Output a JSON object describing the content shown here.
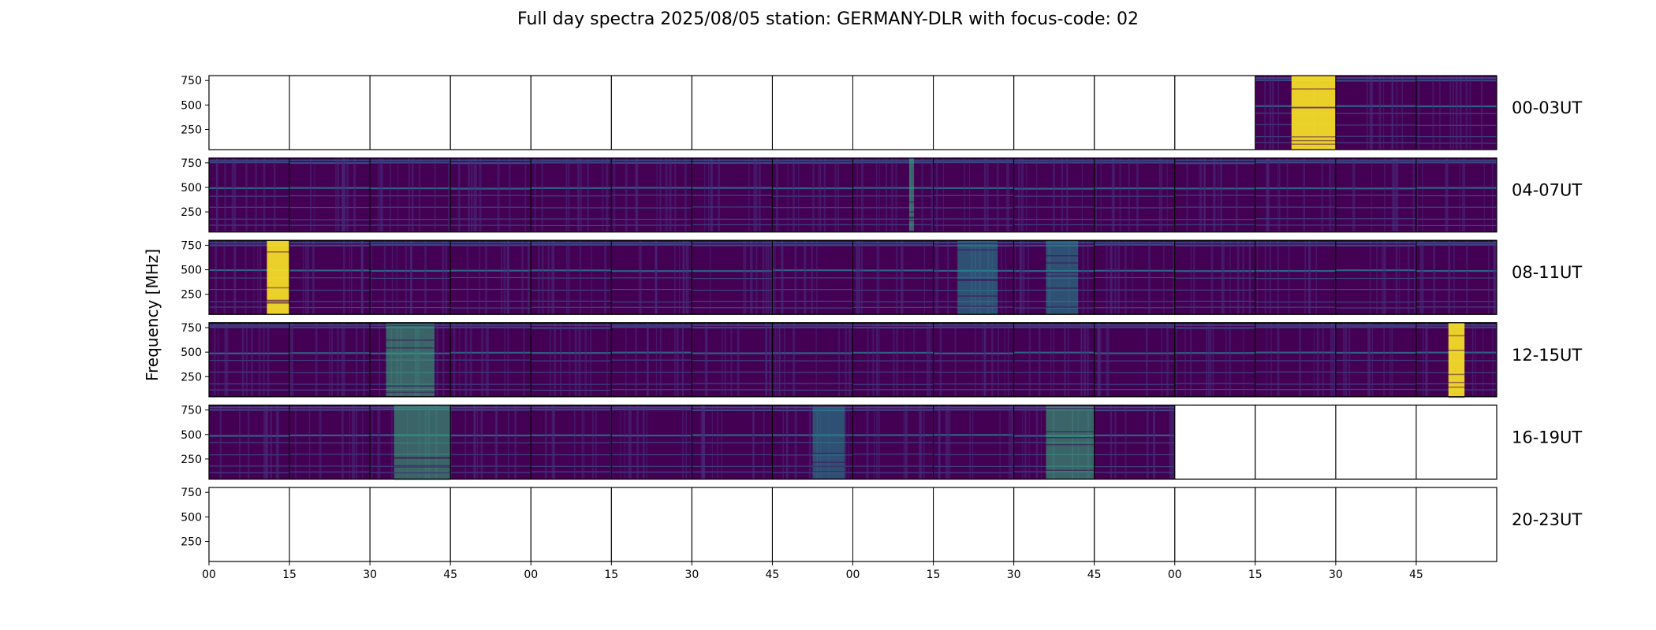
{
  "chart_data": {
    "type": "heatmap",
    "title": "Full day spectra 2025/08/05 station: GERMANY-DLR with focus-code: 02",
    "ylabel": "Frequency [MHz]",
    "xlabel": "",
    "colormap": "viridis",
    "y_ticks": [
      "750",
      "500",
      "250"
    ],
    "ylim": [
      45,
      800
    ],
    "x_ticks": [
      "00",
      "15",
      "30",
      "45",
      "00",
      "15",
      "30",
      "45",
      "00",
      "15",
      "30",
      "45",
      "00",
      "15",
      "30",
      "45"
    ],
    "rows": [
      {
        "label": "00-03UT",
        "panels": [
          0,
          0,
          0,
          0,
          0,
          0,
          0,
          0,
          0,
          0,
          0,
          0,
          0,
          1,
          1,
          1
        ]
      },
      {
        "label": "04-07UT",
        "panels": [
          1,
          1,
          1,
          1,
          1,
          1,
          1,
          1,
          1,
          1,
          1,
          1,
          1,
          1,
          1,
          1
        ]
      },
      {
        "label": "08-11UT",
        "panels": [
          1,
          1,
          1,
          1,
          1,
          1,
          1,
          1,
          1,
          1,
          1,
          1,
          1,
          1,
          1,
          1
        ]
      },
      {
        "label": "12-15UT",
        "panels": [
          1,
          1,
          1,
          1,
          1,
          1,
          1,
          1,
          1,
          1,
          1,
          1,
          1,
          1,
          1,
          1
        ]
      },
      {
        "label": "16-19UT",
        "panels": [
          1,
          1,
          1,
          1,
          1,
          1,
          1,
          1,
          1,
          1,
          1,
          1,
          0,
          0,
          0,
          0
        ]
      },
      {
        "label": "20-23UT",
        "panels": [
          0,
          0,
          0,
          0,
          0,
          0,
          0,
          0,
          0,
          0,
          0,
          0,
          0,
          0,
          0,
          0
        ]
      }
    ],
    "bursts": [
      {
        "row": 0,
        "panel": 13,
        "from": 0.45,
        "to": 1.0,
        "level": "high"
      },
      {
        "row": 1,
        "panel": 8,
        "from": 0.7,
        "to": 0.76,
        "level": "medium"
      },
      {
        "row": 2,
        "panel": 0,
        "from": 0.72,
        "to": 1.0,
        "level": "high"
      },
      {
        "row": 2,
        "panel": 9,
        "from": 0.3,
        "to": 0.8,
        "level": "low"
      },
      {
        "row": 2,
        "panel": 10,
        "from": 0.4,
        "to": 0.8,
        "level": "low"
      },
      {
        "row": 3,
        "panel": 2,
        "from": 0.2,
        "to": 0.8,
        "level": "medium"
      },
      {
        "row": 3,
        "panel": 15,
        "from": 0.4,
        "to": 0.6,
        "level": "high"
      },
      {
        "row": 4,
        "panel": 2,
        "from": 0.3,
        "to": 1.0,
        "level": "medium"
      },
      {
        "row": 4,
        "panel": 7,
        "from": 0.5,
        "to": 0.9,
        "level": "low"
      },
      {
        "row": 4,
        "panel": 10,
        "from": 0.4,
        "to": 1.0,
        "level": "medium"
      }
    ]
  }
}
